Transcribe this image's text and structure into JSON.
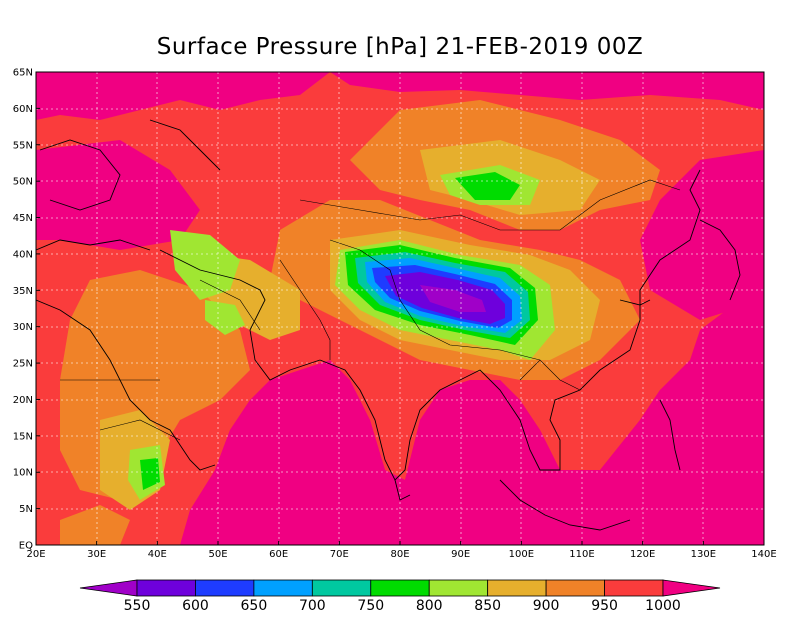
{
  "title": "Surface Pressure [hPa] 21-FEB-2019 00Z",
  "map": {
    "lon_range": [
      20,
      140
    ],
    "lat_range": [
      0,
      65
    ],
    "lon_ticks": [
      "20E",
      "30E",
      "40E",
      "50E",
      "60E",
      "70E",
      "80E",
      "90E",
      "100E",
      "110E",
      "120E",
      "130E",
      "140E"
    ],
    "lat_ticks": [
      "EQ",
      "5N",
      "10N",
      "15N",
      "20N",
      "25N",
      "30N",
      "35N",
      "40N",
      "45N",
      "50N",
      "55N",
      "60N",
      "65N"
    ],
    "grid": true
  },
  "colorbar": {
    "levels": [
      "550",
      "600",
      "650",
      "700",
      "750",
      "800",
      "850",
      "900",
      "950",
      "1000"
    ],
    "colors": [
      "#a000c8",
      "#6e00dc",
      "#1e3cff",
      "#00a0ff",
      "#00c8a0",
      "#00dc00",
      "#a0e632",
      "#e6af2d",
      "#f08228",
      "#fa3c3c",
      "#f00082"
    ]
  }
}
